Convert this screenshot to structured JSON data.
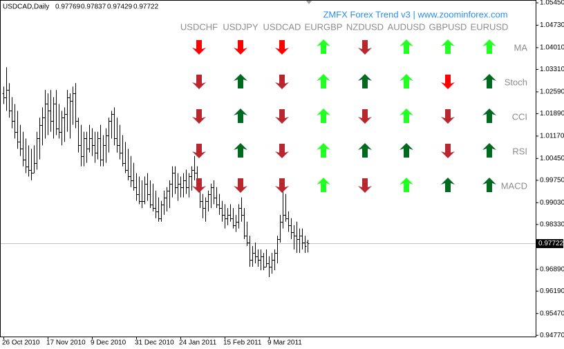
{
  "chart_data": {
    "type": "ohlc",
    "title": "USDCAD,Daily",
    "color": "#000000",
    "categories": [
      "26 Oct 2010",
      null,
      null,
      null,
      null,
      null,
      null,
      null,
      null,
      null,
      null,
      null,
      null,
      null,
      null,
      null,
      "17 Nov 2010",
      null,
      null,
      null,
      null,
      null,
      null,
      null,
      null,
      null,
      null,
      null,
      null,
      null,
      null,
      null,
      "9 Dec 2010",
      null,
      null,
      null,
      null,
      null,
      null,
      null,
      null,
      null,
      null,
      null,
      null,
      null,
      null,
      null,
      "31 Dec 2010",
      null,
      null,
      null,
      null,
      null,
      null,
      null,
      null,
      null,
      null,
      null,
      null,
      null,
      null,
      null,
      "24 Jan 2011",
      null,
      null,
      null,
      null,
      null,
      null,
      null,
      null,
      null,
      null,
      null,
      null,
      null,
      null,
      null,
      "15 Feb 2011",
      null,
      null,
      null,
      null,
      null,
      null,
      null,
      null,
      null,
      null,
      null,
      null,
      null,
      null,
      null,
      "9 Mar 2011",
      null,
      null,
      null,
      null,
      null,
      null,
      null,
      null,
      null,
      null,
      null,
      null,
      null,
      null
    ],
    "open": [
      1.0254,
      1.0242,
      1.0265,
      1.0198,
      1.0165,
      1.0131,
      1.0098,
      1.0076,
      1.0042,
      1.002,
      1.0009,
      0.9998,
      1.0031,
      1.0109,
      1.0153,
      1.0176,
      1.022,
      1.0198,
      1.0165,
      1.022,
      1.0142,
      1.0131,
      1.0176,
      1.0187,
      1.0242,
      1.0231,
      1.0254,
      1.0165,
      1.0087,
      1.0053,
      1.0109,
      1.0076,
      1.0109,
      1.0087,
      1.0064,
      1.0109,
      1.0042,
      1.0087,
      1.012,
      1.0165,
      1.0187,
      1.0109,
      1.0087,
      1.0064,
      1.0031,
      1.0009,
      0.9987,
      0.9975,
      0.9953,
      0.9931,
      0.9909,
      0.9909,
      0.9964,
      0.9931,
      0.9898,
      0.9886,
      0.9875,
      0.9853,
      0.9898,
      0.992,
      0.9942,
      0.9964,
      0.9998,
      0.9953,
      0.9964,
      0.9953,
      0.9975,
      0.9953,
      0.9987,
      1.0009,
      0.9998,
      0.9964,
      0.9909,
      0.9886,
      0.9909,
      0.9931,
      0.9953,
      0.992,
      0.9898,
      0.9886,
      0.9864,
      0.9853,
      0.9864,
      0.9853,
      0.9831,
      0.9842,
      0.9886,
      0.9864,
      0.9797,
      0.9775,
      0.972,
      0.9742,
      0.9731,
      0.972,
      0.9731,
      0.9697,
      0.9708,
      0.9697,
      0.972,
      0.9742,
      0.9786,
      0.9842,
      0.9864,
      0.9853,
      0.9831,
      0.9809,
      0.9797,
      0.9786,
      0.9797,
      0.9775,
      0.97769
    ],
    "high": [
      1.0276,
      1.0338,
      1.0287,
      1.0242,
      1.022,
      1.0198,
      1.0153,
      1.0131,
      1.0109,
      1.0087,
      1.0076,
      1.0087,
      1.0131,
      1.0176,
      1.0209,
      1.0265,
      1.0254,
      1.0265,
      1.0242,
      1.0265,
      1.022,
      1.0198,
      1.0209,
      1.0265,
      1.0254,
      1.0276,
      1.0287,
      1.0176,
      1.0153,
      1.0131,
      1.0131,
      1.0153,
      1.0142,
      1.0131,
      1.0131,
      1.0153,
      1.012,
      1.0142,
      1.0176,
      1.0198,
      1.0209,
      1.0176,
      1.0153,
      1.012,
      1.0098,
      1.0076,
      1.0053,
      1.0031,
      0.9998,
      0.9987,
      0.9975,
      0.9987,
      0.9998,
      0.9975,
      0.9964,
      0.9942,
      0.992,
      0.9909,
      0.9942,
      0.9953,
      0.9975,
      1.002,
      1.002,
      0.9998,
      0.9987,
      0.9998,
      1.0009,
      0.9998,
      1.002,
      1.0053,
      1.002,
      0.9975,
      0.9931,
      0.992,
      0.9942,
      0.9964,
      0.9975,
      0.9953,
      0.9931,
      0.9909,
      0.9898,
      0.9886,
      0.9898,
      0.9886,
      0.9864,
      0.9898,
      0.992,
      0.9886,
      0.9842,
      0.9797,
      0.9764,
      0.9775,
      0.9753,
      0.9753,
      0.9742,
      0.9753,
      0.9731,
      0.9742,
      0.9753,
      0.9797,
      0.9864,
      0.9964,
      0.9931,
      0.9875,
      0.9853,
      0.9831,
      0.9842,
      0.982,
      0.982,
      0.9797,
      0.97837
    ],
    "low": [
      1.022,
      1.0198,
      1.0176,
      1.0142,
      1.0109,
      1.0076,
      1.0053,
      1.002,
      0.9998,
      0.9987,
      0.9975,
      0.9998,
      1.0009,
      1.0042,
      1.0087,
      1.0109,
      1.012,
      1.0131,
      1.0109,
      1.012,
      1.0109,
      1.0087,
      1.0098,
      1.0131,
      1.0109,
      1.0153,
      1.0142,
      1.0064,
      1.002,
      1.002,
      1.0031,
      1.0064,
      1.0053,
      1.0031,
      1.0042,
      1.002,
      1.002,
      1.0031,
      1.0064,
      1.0109,
      1.0087,
      1.0064,
      1.0042,
      1.002,
      0.9998,
      0.9975,
      0.9953,
      0.9942,
      0.9909,
      0.9898,
      0.9886,
      0.9898,
      0.9909,
      0.9886,
      0.9875,
      0.9853,
      0.9842,
      0.9842,
      0.9864,
      0.9875,
      0.9886,
      0.992,
      0.9931,
      0.9909,
      0.992,
      0.992,
      0.9931,
      0.992,
      0.9942,
      0.9975,
      0.9953,
      0.9886,
      0.9853,
      0.9842,
      0.9875,
      0.9886,
      0.9898,
      0.9886,
      0.9864,
      0.9842,
      0.982,
      0.9831,
      0.9842,
      0.982,
      0.9809,
      0.982,
      0.9842,
      0.9786,
      0.9764,
      0.9697,
      0.9697,
      0.9708,
      0.9697,
      0.9686,
      0.9686,
      0.9697,
      0.9664,
      0.9675,
      0.9686,
      0.9708,
      0.9775,
      0.982,
      0.9842,
      0.9809,
      0.9786,
      0.9753,
      0.9742,
      0.9742,
      0.9753,
      0.9742,
      0.97429
    ],
    "close": [
      1.0242,
      1.0265,
      1.0198,
      1.0165,
      1.0131,
      1.0098,
      1.0076,
      1.0042,
      1.002,
      1.0009,
      0.9998,
      1.0031,
      1.0109,
      1.0153,
      1.0176,
      1.022,
      1.0198,
      1.0165,
      1.022,
      1.0142,
      1.0131,
      1.0176,
      1.0187,
      1.0242,
      1.0231,
      1.0254,
      1.0165,
      1.0087,
      1.0053,
      1.0109,
      1.0076,
      1.0109,
      1.0087,
      1.0064,
      1.0109,
      1.0042,
      1.0087,
      1.012,
      1.0165,
      1.0187,
      1.0109,
      1.0087,
      1.0064,
      1.0031,
      1.0009,
      0.9987,
      0.9975,
      0.9953,
      0.9931,
      0.9909,
      0.9909,
      0.9964,
      0.9931,
      0.9898,
      0.9886,
      0.9875,
      0.9853,
      0.9898,
      0.992,
      0.9942,
      0.9964,
      0.9998,
      0.9953,
      0.9964,
      0.9953,
      0.9975,
      0.9953,
      0.9987,
      1.0009,
      0.9998,
      0.9964,
      0.9909,
      0.9886,
      0.9909,
      0.9931,
      0.9953,
      0.992,
      0.9898,
      0.9886,
      0.9864,
      0.9853,
      0.9864,
      0.9853,
      0.9831,
      0.9842,
      0.9886,
      0.9864,
      0.9797,
      0.9775,
      0.972,
      0.9742,
      0.9731,
      0.972,
      0.9731,
      0.9697,
      0.9708,
      0.9697,
      0.972,
      0.9742,
      0.9786,
      0.9842,
      0.9864,
      0.9853,
      0.9831,
      0.9809,
      0.9797,
      0.9786,
      0.9797,
      0.9775,
      0.9764,
      0.97722
    ],
    "ylim": [
      0.9473,
      1.0554
    ],
    "yticks": [
      {
        "value": 1.0545,
        "label": "1.05450"
      },
      {
        "value": 1.0473,
        "label": "1.04730"
      },
      {
        "value": 1.0401,
        "label": "1.04010"
      },
      {
        "value": 1.0331,
        "label": "1.03310"
      },
      {
        "value": 1.0259,
        "label": "1.02590"
      },
      {
        "value": 1.0189,
        "label": "1.01890"
      },
      {
        "value": 1.0117,
        "label": "1.01170"
      },
      {
        "value": 1.0045,
        "label": "1.00450"
      },
      {
        "value": 0.9975,
        "label": "0.99750"
      },
      {
        "value": 0.9903,
        "label": "0.99030"
      },
      {
        "value": 0.9833,
        "label": "0.98330"
      },
      {
        "value": 0.9689,
        "label": "0.96890"
      },
      {
        "value": 0.9619,
        "label": "0.96190"
      },
      {
        "value": 0.9547,
        "label": "0.95470"
      },
      {
        "value": 0.9477,
        "label": "0.94770"
      }
    ]
  },
  "indicator": {
    "title": "ZMFX Forex Trend v3 | www.zoominforex.com",
    "pairs": [
      "USDCHF",
      "USDJPY",
      "USDCAD",
      "EURGBP",
      "NZDUSD",
      "AUDUSD",
      "GBPUSD",
      "EURUSD"
    ],
    "rows": [
      {
        "name": "MA",
        "signals": [
          {
            "dir": "down",
            "color": "#ff0000"
          },
          {
            "dir": "down",
            "color": "#ff0000"
          },
          {
            "dir": "down",
            "color": "#ff0000"
          },
          {
            "dir": "up",
            "color": "#22ff22"
          },
          {
            "dir": "down",
            "color": "#b8262e"
          },
          {
            "dir": "up",
            "color": "#22ff22"
          },
          {
            "dir": "up",
            "color": "#22ff22"
          },
          {
            "dir": "up",
            "color": "#22ff22"
          }
        ]
      },
      {
        "name": "Stoch",
        "signals": [
          {
            "dir": "down",
            "color": "#b8262e"
          },
          {
            "dir": "up",
            "color": "#006a1e"
          },
          {
            "dir": "down",
            "color": "#b8262e"
          },
          {
            "dir": "up",
            "color": "#22ff22"
          },
          {
            "dir": "up",
            "color": "#006a1e"
          },
          {
            "dir": "up",
            "color": "#22ff22"
          },
          {
            "dir": "down",
            "color": "#ff0000"
          },
          {
            "dir": "up",
            "color": "#006a1e"
          }
        ]
      },
      {
        "name": "CCI",
        "signals": [
          {
            "dir": "down",
            "color": "#b8262e"
          },
          {
            "dir": "up",
            "color": "#006a1e"
          },
          {
            "dir": "down",
            "color": "#b8262e"
          },
          {
            "dir": "up",
            "color": "#22ff22"
          },
          {
            "dir": "down",
            "color": "#b8262e"
          },
          {
            "dir": "up",
            "color": "#22ff22"
          },
          {
            "dir": "down",
            "color": "#b8262e"
          },
          {
            "dir": "up",
            "color": "#006a1e"
          }
        ]
      },
      {
        "name": "RSI",
        "signals": [
          {
            "dir": "down",
            "color": "#b8262e"
          },
          {
            "dir": "up",
            "color": "#006a1e"
          },
          {
            "dir": "down",
            "color": "#b8262e"
          },
          {
            "dir": "up",
            "color": "#22ff22"
          },
          {
            "dir": "up",
            "color": "#006a1e"
          },
          {
            "dir": "up",
            "color": "#006a1e"
          },
          {
            "dir": "down",
            "color": "#b8262e"
          },
          {
            "dir": "up",
            "color": "#006a1e"
          }
        ]
      },
      {
        "name": "MACD",
        "signals": [
          {
            "dir": "down",
            "color": "#b8262e"
          },
          {
            "dir": "down",
            "color": "#b8262e"
          },
          {
            "dir": "down",
            "color": "#b8262e"
          },
          {
            "dir": "up",
            "color": "#22ff22"
          },
          {
            "dir": "down",
            "color": "#b8262e"
          },
          {
            "dir": "up",
            "color": "#22ff22"
          },
          {
            "dir": "up",
            "color": "#006a1e"
          },
          {
            "dir": "up",
            "color": "#006a1e"
          }
        ]
      }
    ]
  }
}
